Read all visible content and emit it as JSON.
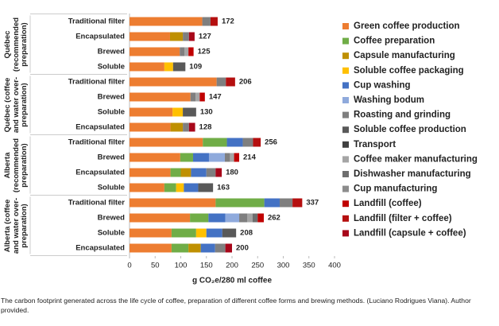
{
  "chart_data": {
    "type": "stacked-bar-horizontal",
    "groups": [
      {
        "label": "Québec (recommended preparation)",
        "categories": [
          "Traditional filter",
          "Encapsulated",
          "Brewed",
          "Soluble"
        ]
      },
      {
        "label": "Québec (coffee and water over-preparation)",
        "categories": [
          "Traditional filter",
          "Brewed",
          "Soluble",
          "Encapsulated"
        ]
      },
      {
        "label": "Alberta (recommended preparation)",
        "categories": [
          "Traditional filter",
          "Brewed",
          "Encapsulated",
          "Soluble"
        ]
      },
      {
        "label": "Alberta (coffee and water over-preparation)",
        "categories": [
          "Traditional filter",
          "Brewed",
          "Soluble",
          "Encapsulated"
        ]
      }
    ],
    "totals": [
      172,
      127,
      125,
      109,
      206,
      147,
      130,
      128,
      256,
      214,
      180,
      163,
      337,
      262,
      208,
      200
    ],
    "series": [
      {
        "name": "Green coffee production",
        "color": "#ED7D31",
        "values": [
          142,
          79,
          98,
          68,
          170,
          119,
          84,
          80,
          143,
          99,
          80,
          68,
          168,
          118,
          82,
          82
        ]
      },
      {
        "name": "Coffee preparation",
        "color": "#70AD47",
        "values": [
          null,
          null,
          null,
          null,
          null,
          null,
          null,
          null,
          47,
          25,
          20,
          23,
          95,
          36,
          48,
          33
        ]
      },
      {
        "name": "Capsule manufacturing",
        "color": "#BF9000",
        "values": [
          null,
          25,
          null,
          null,
          null,
          null,
          null,
          24,
          null,
          null,
          20,
          null,
          null,
          null,
          null,
          24
        ]
      },
      {
        "name": "Soluble coffee packaging",
        "color": "#FFC000",
        "values": [
          null,
          null,
          null,
          17,
          null,
          null,
          20,
          null,
          null,
          null,
          null,
          15,
          null,
          null,
          20,
          null
        ]
      },
      {
        "name": "Cup washing",
        "color": "#4472C4",
        "values": [
          null,
          null,
          null,
          null,
          null,
          null,
          null,
          null,
          31,
          31,
          30,
          28,
          30,
          33,
          31,
          28
        ]
      },
      {
        "name": "Washing bodum",
        "color": "#8FAADC",
        "values": [
          null,
          null,
          null,
          null,
          null,
          null,
          null,
          null,
          null,
          31,
          null,
          null,
          null,
          27,
          null,
          null
        ]
      },
      {
        "name": "Roasting and grinding",
        "color": "#7F7F7F",
        "values": [
          16,
          12,
          9,
          null,
          18,
          10,
          null,
          12,
          20,
          10,
          18,
          null,
          25,
          16,
          null,
          20
        ]
      },
      {
        "name": "Soluble coffee production",
        "color": "#595959",
        "values": [
          null,
          null,
          null,
          24,
          null,
          null,
          26,
          null,
          null,
          null,
          null,
          29,
          null,
          null,
          27,
          null
        ]
      },
      {
        "name": "Transport",
        "color": "#404040",
        "values": [
          null,
          null,
          null,
          null,
          null,
          null,
          null,
          null,
          null,
          null,
          null,
          null,
          null,
          null,
          null,
          null
        ]
      },
      {
        "name": "Coffee maker manufacturing",
        "color": "#A5A5A5",
        "values": [
          null,
          null,
          8,
          null,
          null,
          8,
          null,
          null,
          null,
          8,
          null,
          null,
          null,
          10,
          null,
          null
        ]
      },
      {
        "name": "Dishwasher manufacturing",
        "color": "#6E6E6E",
        "values": [
          null,
          null,
          null,
          null,
          null,
          null,
          null,
          null,
          null,
          null,
          null,
          null,
          null,
          10,
          null,
          null
        ]
      },
      {
        "name": "Cup manufacturing",
        "color": "#8C8C8C",
        "values": [
          null,
          null,
          null,
          null,
          null,
          null,
          null,
          null,
          null,
          null,
          null,
          null,
          null,
          null,
          null,
          null
        ]
      },
      {
        "name": "Landfill (coffee)",
        "color": "#C00000",
        "values": [
          null,
          null,
          10,
          null,
          null,
          10,
          null,
          null,
          null,
          10,
          null,
          null,
          null,
          12,
          null,
          null
        ]
      },
      {
        "name": "Landfill (filter + coffee)",
        "color": "#B50F0F",
        "values": [
          14,
          null,
          null,
          null,
          18,
          null,
          null,
          null,
          15,
          null,
          null,
          null,
          19,
          null,
          null,
          null
        ]
      },
      {
        "name": "Landfill (capsule + coffee)",
        "color": "#A8071A",
        "values": [
          null,
          11,
          null,
          null,
          null,
          null,
          null,
          12,
          null,
          null,
          12,
          null,
          null,
          null,
          null,
          13
        ]
      }
    ],
    "xlim": [
      0,
      400
    ],
    "xticks": [
      0,
      50,
      100,
      150,
      200,
      250,
      300,
      350,
      400
    ],
    "xlabel": "g CO₂e/280 ml coffee"
  },
  "caption": "The carbon footprint generated across the life cycle of coffee, preparation of different coffee forms and brewing methods. (Luciano Rodrigues Viana). Author provided."
}
